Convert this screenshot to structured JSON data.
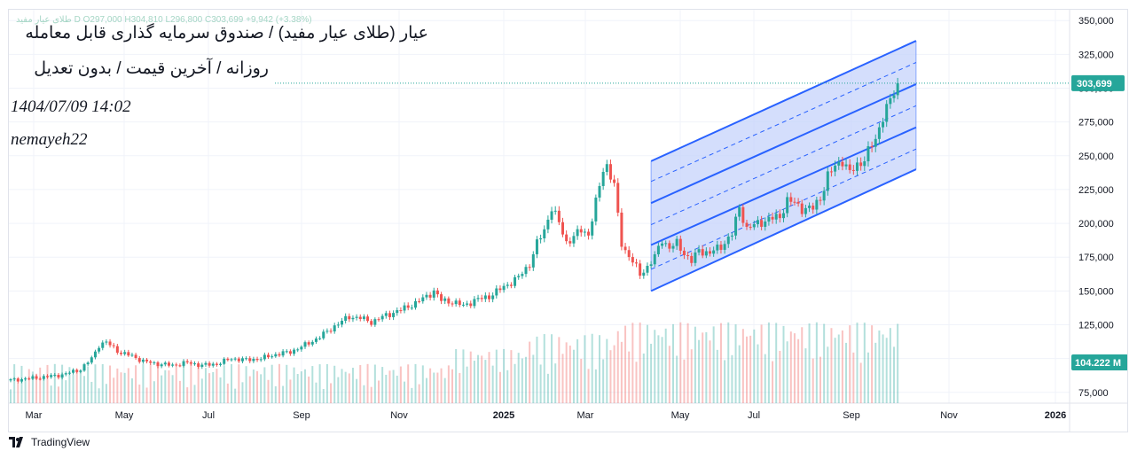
{
  "header": {
    "ohlc_text": "طلای عیار مفید D  O297,000  H304,810  L296,800  C303,699  +9,942 (+3.38%)",
    "title": "عیار (طلای عیار مفید) / صندوق سرمایه گذاری قابل معامله",
    "subtitle": "روزانه / آخرین قیمت / بدون تعدیل",
    "timestamp": "1404/07/09 14:02",
    "author": "nemayeh22"
  },
  "branding": {
    "name": "TradingView",
    "logo_icon": "tradingview-logo-icon"
  },
  "colors": {
    "up": "#26a69a",
    "down": "#ef5350",
    "channel_line": "#2962ff",
    "channel_fill": "#c5d3fb",
    "last_price_tag": "#26a69a",
    "volume_tag": "#26a69a"
  },
  "chart_data": {
    "type": "candlestick",
    "x_axis": {
      "labels": [
        "Mar",
        "May",
        "Jul",
        "Sep",
        "Nov",
        "2025",
        "Mar",
        "May",
        "Jul",
        "Sep",
        "Nov",
        "2026"
      ],
      "bold_labels": [
        "2025",
        "2026"
      ]
    },
    "y_axis": {
      "ticks": [
        75000,
        100000,
        125000,
        150000,
        175000,
        200000,
        225000,
        250000,
        275000,
        300000,
        325000,
        350000
      ],
      "tick_labels": [
        "75,000",
        "100,000",
        "125,000",
        "150,000",
        "175,000",
        "200,000",
        "225,000",
        "250,000",
        "275,000",
        "300,000",
        "325,000",
        "350,000"
      ],
      "range": [
        67000,
        358000
      ]
    },
    "last_price": {
      "value": 303699,
      "label": "303,699"
    },
    "last_volume": {
      "label": "104.222 M"
    },
    "ohlc": {
      "open": 297000,
      "high": 304810,
      "low": 296800,
      "close": 303699,
      "change": 9942,
      "change_pct": 3.38
    },
    "price_path": [
      [
        0,
        84000
      ],
      [
        8,
        86000
      ],
      [
        14,
        88000
      ],
      [
        19,
        92000
      ],
      [
        22,
        100000
      ],
      [
        24,
        110000
      ],
      [
        26,
        112000
      ],
      [
        28,
        108000
      ],
      [
        30,
        104000
      ],
      [
        33,
        102000
      ],
      [
        36,
        98000
      ],
      [
        40,
        96000
      ],
      [
        44,
        95000
      ],
      [
        48,
        97000
      ],
      [
        52,
        95000
      ],
      [
        56,
        96000
      ],
      [
        60,
        100000
      ],
      [
        64,
        99000
      ],
      [
        68,
        100000
      ],
      [
        72,
        103000
      ],
      [
        76,
        105000
      ],
      [
        80,
        110000
      ],
      [
        84,
        116000
      ],
      [
        88,
        124000
      ],
      [
        92,
        131000
      ],
      [
        95,
        130000
      ],
      [
        98,
        127000
      ],
      [
        102,
        132000
      ],
      [
        106,
        136000
      ],
      [
        110,
        141000
      ],
      [
        113,
        146000
      ],
      [
        115,
        150000
      ],
      [
        117,
        143000
      ],
      [
        120,
        142000
      ],
      [
        123,
        139000
      ],
      [
        126,
        143000
      ],
      [
        130,
        146000
      ],
      [
        134,
        153000
      ],
      [
        138,
        160000
      ],
      [
        141,
        170000
      ],
      [
        143,
        185000
      ],
      [
        145,
        195000
      ],
      [
        147,
        212000
      ],
      [
        149,
        200000
      ],
      [
        151,
        186000
      ],
      [
        153,
        190000
      ],
      [
        155,
        195000
      ],
      [
        157,
        192000
      ],
      [
        159,
        215000
      ],
      [
        161,
        240000
      ],
      [
        162,
        243000
      ],
      [
        164,
        228000
      ],
      [
        165,
        205000
      ],
      [
        166,
        185000
      ],
      [
        167,
        180000
      ],
      [
        169,
        172000
      ],
      [
        171,
        162000
      ],
      [
        173,
        168000
      ],
      [
        175,
        175000
      ],
      [
        177,
        188000
      ],
      [
        179,
        182000
      ],
      [
        181,
        185000
      ],
      [
        183,
        178000
      ],
      [
        185,
        172000
      ],
      [
        187,
        180000
      ],
      [
        190,
        178000
      ],
      [
        193,
        183000
      ],
      [
        196,
        192000
      ],
      [
        198,
        212000
      ],
      [
        200,
        196000
      ],
      [
        203,
        200000
      ],
      [
        206,
        203000
      ],
      [
        209,
        205000
      ],
      [
        211,
        217000
      ],
      [
        213,
        215000
      ],
      [
        215,
        211000
      ],
      [
        218,
        211000
      ],
      [
        220,
        219000
      ],
      [
        222,
        235000
      ],
      [
        224,
        242000
      ],
      [
        226,
        247000
      ],
      [
        228,
        237000
      ],
      [
        230,
        243000
      ],
      [
        232,
        248000
      ],
      [
        235,
        262000
      ],
      [
        237,
        280000
      ],
      [
        239,
        290000
      ],
      [
        241,
        303699
      ]
    ],
    "volume_range": [
      0,
      260000000
    ],
    "channel": {
      "type": "parallel-channel",
      "start": 174,
      "end": 246,
      "lines": [
        {
          "start": 150000,
          "end": 240000,
          "style": "solid"
        },
        {
          "start": 184000,
          "end": 271000,
          "style": "solid"
        },
        {
          "start": 215000,
          "end": 303000,
          "style": "solid"
        },
        {
          "start": 246000,
          "end": 335000,
          "style": "solid"
        }
      ],
      "dashed_lines": [
        {
          "start": 166000,
          "end": 255000
        },
        {
          "start": 199000,
          "end": 287000
        },
        {
          "start": 231000,
          "end": 319000
        }
      ]
    }
  }
}
